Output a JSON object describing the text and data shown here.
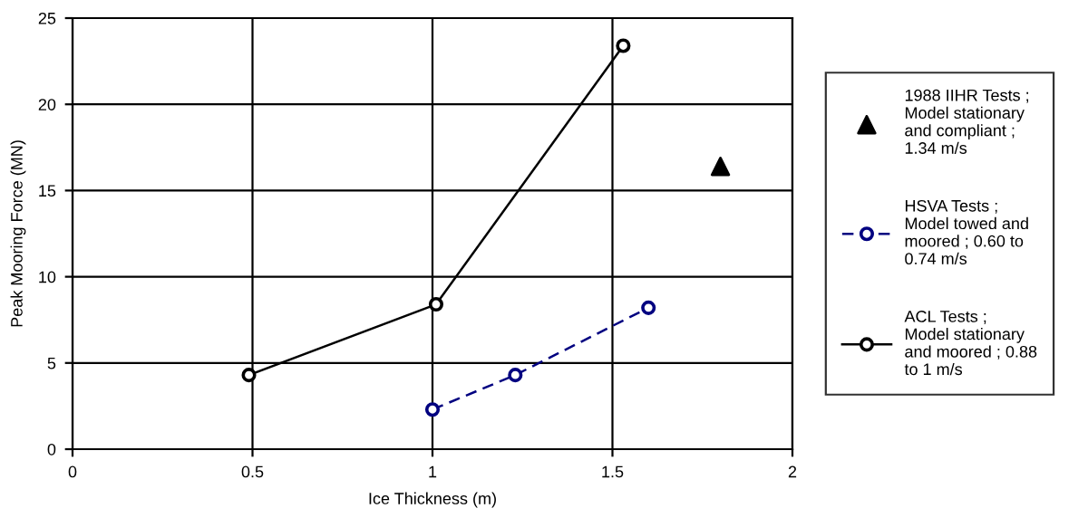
{
  "chart_data": {
    "type": "line",
    "xlabel": "Ice Thickness (m)",
    "ylabel": "Peak Mooring Force (MN)",
    "xlim": [
      0,
      2
    ],
    "xticks": [
      0,
      0.5,
      1,
      1.5,
      2
    ],
    "ylim": [
      0,
      25
    ],
    "yticks": [
      0,
      5,
      10,
      15,
      20,
      25
    ],
    "grid": true,
    "legend": "right",
    "series": [
      {
        "name": "1988 IIHR Tests ;\nModel stationary\nand compliant ;\n1.34 m/s",
        "type": "scatter",
        "color": "#000000",
        "marker": "triangle",
        "x": [
          1.8
        ],
        "values": [
          16.4
        ]
      },
      {
        "name": "HSVA Tests ;\nModel towed and\nmoored ; 0.60 to\n0.74 m/s",
        "color": "#000080",
        "marker": "circle",
        "line_style": "dashed",
        "x": [
          1.0,
          1.23,
          1.6
        ],
        "values": [
          2.3,
          4.3,
          8.2
        ]
      },
      {
        "name": "ACL Tests ;\nModel stationary\nand moored ; 0.88\nto 1 m/s",
        "color": "#000000",
        "marker": "circle",
        "line_style": "solid",
        "x": [
          0.49,
          1.01,
          1.53
        ],
        "values": [
          4.3,
          8.4,
          23.4
        ]
      }
    ]
  }
}
